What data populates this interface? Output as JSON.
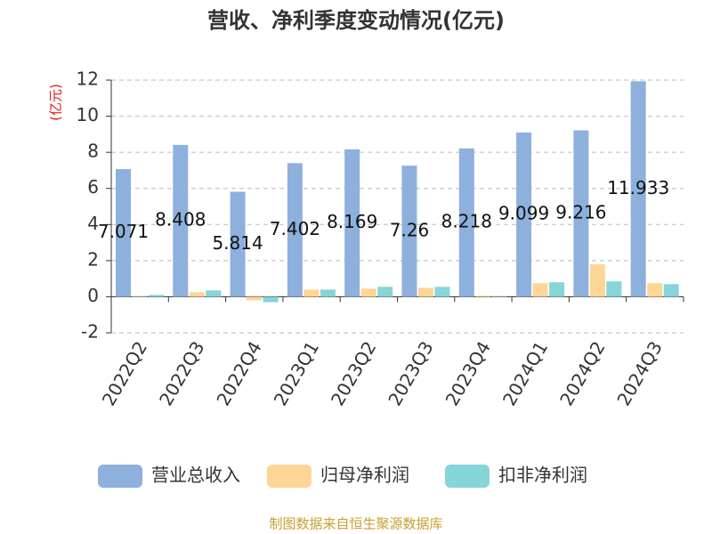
{
  "chart_data": {
    "type": "bar",
    "title": "营收、净利季度变动情况(亿元)",
    "y_label": "(亿元)",
    "source": "制图数据来自恒生聚源数据库",
    "categories": [
      "2022Q2",
      "2022Q3",
      "2022Q4",
      "2023Q1",
      "2023Q2",
      "2023Q3",
      "2023Q4",
      "2024Q1",
      "2024Q2",
      "2024Q3"
    ],
    "series": [
      {
        "name": "营业总收入",
        "color": "#8eb0dc",
        "values": [
          7.071,
          8.408,
          5.814,
          7.402,
          8.169,
          7.26,
          8.218,
          9.099,
          9.216,
          11.933
        ]
      },
      {
        "name": "归母净利润",
        "color": "#fdd696",
        "values": [
          0.02,
          0.25,
          -0.2,
          0.4,
          0.45,
          0.5,
          -0.05,
          0.75,
          1.8,
          0.75
        ]
      },
      {
        "name": "扣非净利润",
        "color": "#86d5d8",
        "values": [
          0.1,
          0.35,
          -0.3,
          0.4,
          0.55,
          0.55,
          0.02,
          0.8,
          0.85,
          0.7
        ]
      }
    ],
    "ylim": [
      -2,
      12
    ],
    "yticks": [
      -2,
      0,
      2,
      4,
      6,
      8,
      10,
      12
    ],
    "grid": true,
    "legend": "bottom"
  }
}
